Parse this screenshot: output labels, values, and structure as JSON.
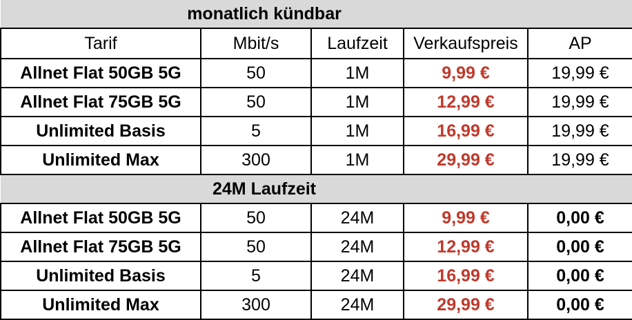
{
  "sections": [
    {
      "title": "monatlich kündbar",
      "rows": [
        {
          "tarif": "Allnet Flat 50GB 5G",
          "mbit": "50",
          "laufzeit": "1M",
          "preis": "9,99 €",
          "ap": "19,99 €"
        },
        {
          "tarif": "Allnet Flat 75GB 5G",
          "mbit": "50",
          "laufzeit": "1M",
          "preis": "12,99 €",
          "ap": "19,99 €"
        },
        {
          "tarif": "Unlimited Basis",
          "mbit": "5",
          "laufzeit": "1M",
          "preis": "16,99 €",
          "ap": "19,99 €"
        },
        {
          "tarif": "Unlimited Max",
          "mbit": "300",
          "laufzeit": "1M",
          "preis": "29,99 €",
          "ap": "19,99 €"
        }
      ]
    },
    {
      "title": "24M Laufzeit",
      "rows": [
        {
          "tarif": "Allnet Flat 50GB 5G",
          "mbit": "50",
          "laufzeit": "24M",
          "preis": "9,99 €",
          "ap": "0,00 €"
        },
        {
          "tarif": "Allnet Flat 75GB 5G",
          "mbit": "50",
          "laufzeit": "24M",
          "preis": "12,99 €",
          "ap": "0,00 €"
        },
        {
          "tarif": "Unlimited Basis",
          "mbit": "5",
          "laufzeit": "24M",
          "preis": "16,99 €",
          "ap": "0,00 €"
        },
        {
          "tarif": "Unlimited Max",
          "mbit": "300",
          "laufzeit": "24M",
          "preis": "29,99 €",
          "ap": "0,00 €"
        }
      ]
    }
  ],
  "headers": {
    "tarif": "Tarif",
    "mbit": "Mbit/s",
    "laufzeit": "Laufzeit",
    "preis": "Verkaufspreis",
    "ap": "AP"
  },
  "colors": {
    "price": "#c0392b",
    "section_bg": "#d9d9d9"
  }
}
